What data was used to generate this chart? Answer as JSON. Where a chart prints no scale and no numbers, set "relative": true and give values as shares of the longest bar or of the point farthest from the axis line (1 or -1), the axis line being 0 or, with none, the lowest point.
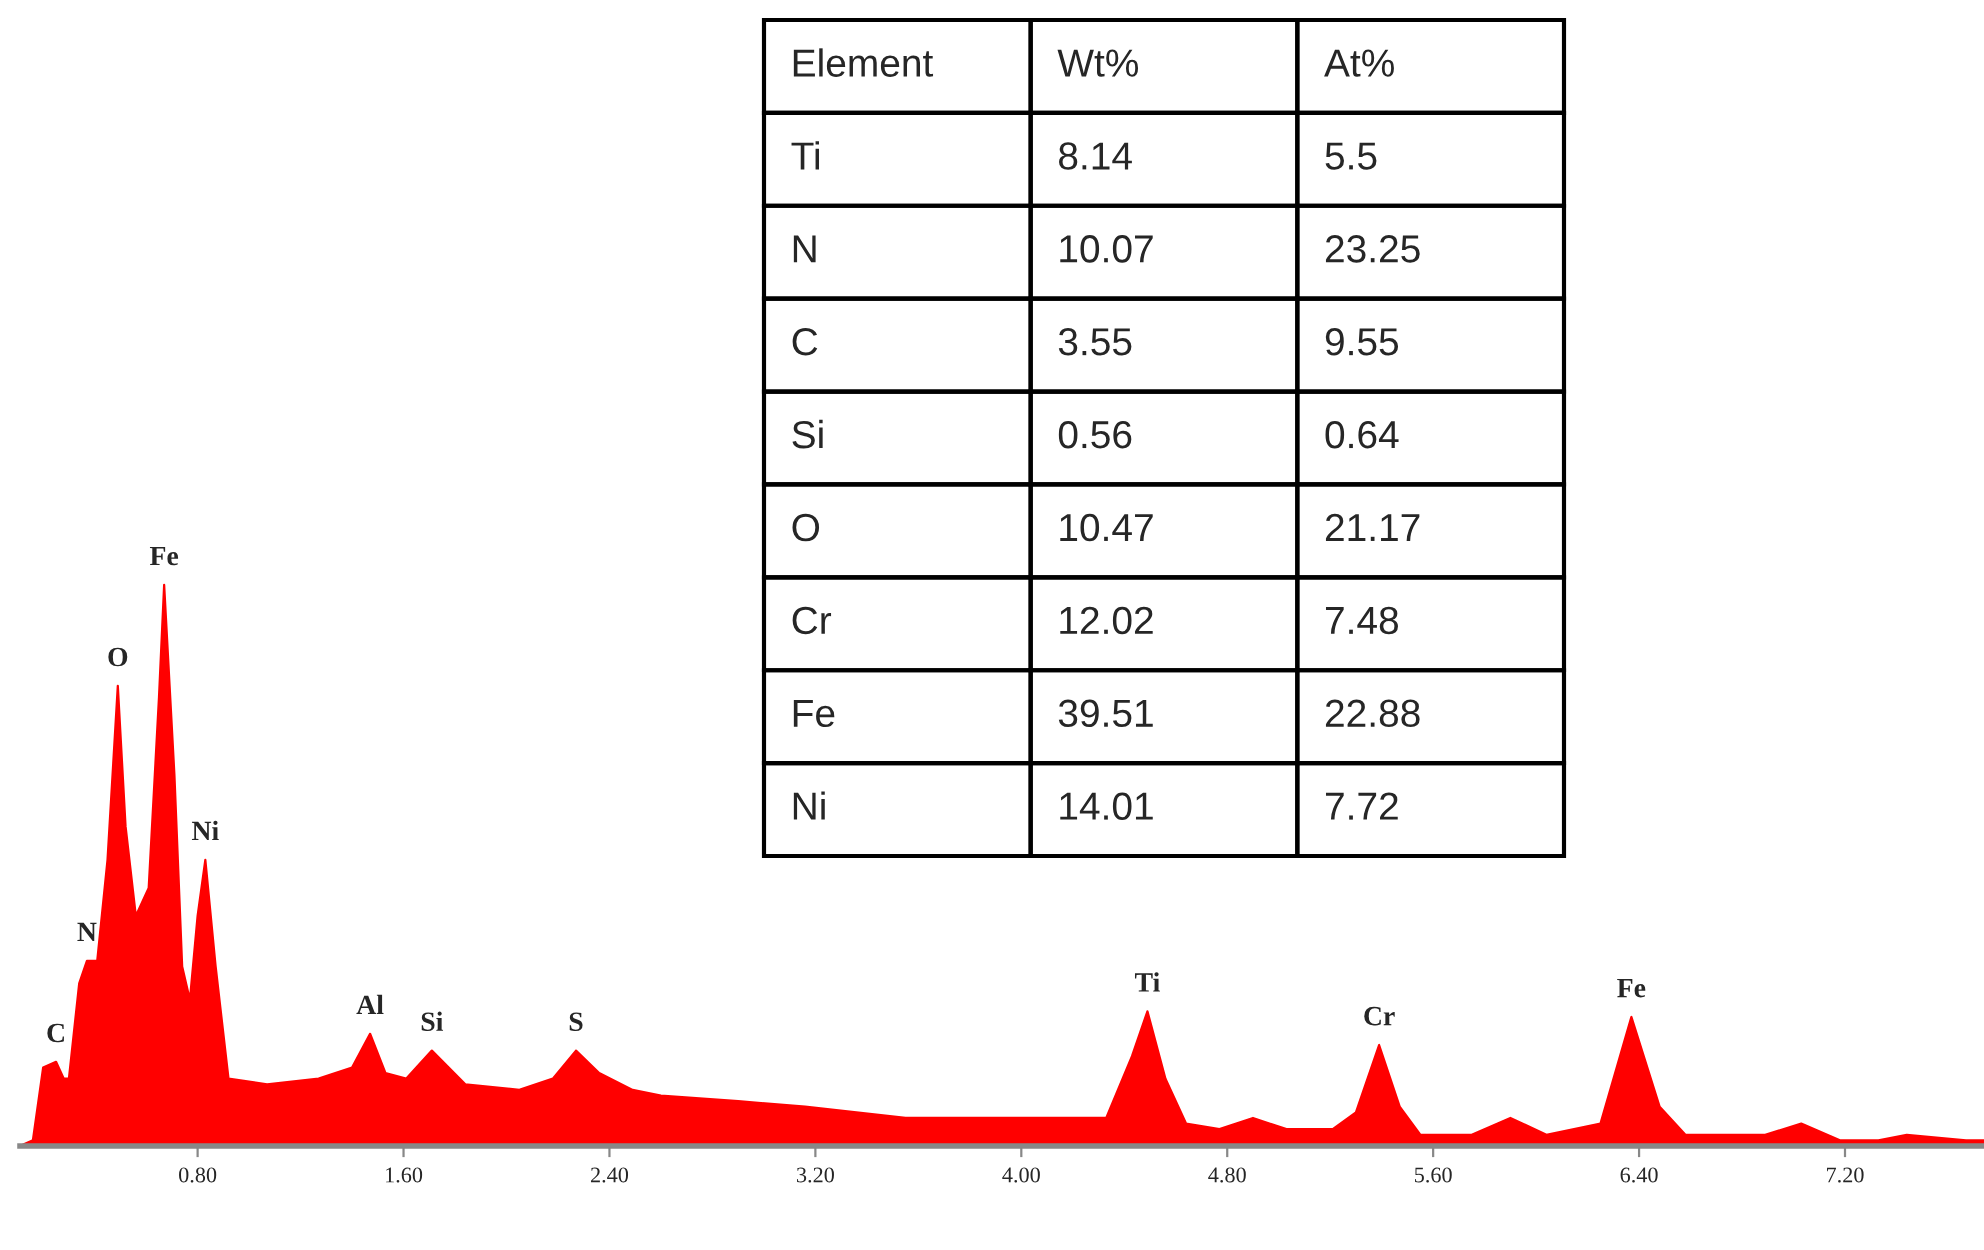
{
  "chart_data": [
    {
      "type": "area",
      "relative": true,
      "color": "#ff0000",
      "x": [
        0.11,
        0.16,
        0.2,
        0.25,
        0.28,
        0.3,
        0.34,
        0.37,
        0.41,
        0.45,
        0.49,
        0.52,
        0.56,
        0.61,
        0.65,
        0.67,
        0.71,
        0.74,
        0.77,
        0.8,
        0.83,
        0.87,
        0.92,
        1.07,
        1.27,
        1.4,
        1.47,
        1.53,
        1.61,
        1.71,
        1.84,
        2.05,
        2.18,
        2.27,
        2.36,
        2.49,
        2.6,
        2.9,
        3.16,
        3.55,
        4.33,
        4.43,
        4.49,
        4.56,
        4.64,
        4.77,
        4.9,
        5.03,
        5.21,
        5.3,
        5.39,
        5.47,
        5.55,
        5.75,
        5.9,
        6.04,
        6.25,
        6.37,
        6.48,
        6.58,
        6.89,
        7.03,
        7.18,
        7.33,
        7.44,
        7.67,
        7.74
      ],
      "values": [
        0,
        0.01,
        0.14,
        0.15,
        0.12,
        0.12,
        0.29,
        0.33,
        0.33,
        0.51,
        0.82,
        0.57,
        0.41,
        0.46,
        0.8,
        1,
        0.66,
        0.32,
        0.26,
        0.41,
        0.51,
        0.32,
        0.12,
        0.11,
        0.12,
        0.14,
        0.2,
        0.13,
        0.12,
        0.17,
        0.11,
        0.1,
        0.12,
        0.17,
        0.13,
        0.1,
        0.09,
        0.08,
        0.07,
        0.05,
        0.05,
        0.16,
        0.24,
        0.12,
        0.04,
        0.03,
        0.05,
        0.03,
        0.03,
        0.06,
        0.18,
        0.07,
        0.02,
        0.02,
        0.05,
        0.02,
        0.04,
        0.23,
        0.07,
        0.02,
        0.02,
        0.04,
        0.01,
        0.01,
        0.02,
        0.01,
        0.01
      ],
      "xlim": [
        0.11,
        7.74
      ],
      "xticks": [
        {
          "value": 0.8,
          "label": "0.80"
        },
        {
          "value": 1.6,
          "label": "1.60"
        },
        {
          "value": 2.4,
          "label": "2.40"
        },
        {
          "value": 3.2,
          "label": "3.20"
        },
        {
          "value": 4.0,
          "label": "4.00"
        },
        {
          "value": 4.8,
          "label": "4.80"
        },
        {
          "value": 5.6,
          "label": "5.60"
        },
        {
          "value": 6.4,
          "label": "6.40"
        },
        {
          "value": 7.2,
          "label": "7.20"
        }
      ],
      "tick_labels": "x",
      "grid": false,
      "legend": false,
      "annotations": [
        {
          "text": "C",
          "x": 0.25,
          "y": 0.15
        },
        {
          "text": "N",
          "x": 0.37,
          "y": 0.33
        },
        {
          "text": "O",
          "x": 0.49,
          "y": 0.82
        },
        {
          "text": "Fe",
          "x": 0.67,
          "y": 1
        },
        {
          "text": "Ni",
          "x": 0.83,
          "y": 0.51
        },
        {
          "text": "Al",
          "x": 1.47,
          "y": 0.2
        },
        {
          "text": "Si",
          "x": 1.71,
          "y": 0.17
        },
        {
          "text": "S",
          "x": 2.27,
          "y": 0.17
        },
        {
          "text": "Ti",
          "x": 4.49,
          "y": 0.24
        },
        {
          "text": "Cr",
          "x": 5.39,
          "y": 0.18
        },
        {
          "text": "Fe",
          "x": 6.37,
          "y": 0.23
        }
      ]
    },
    {
      "type": "other",
      "categories": [
        "Element",
        "Wt%",
        "At%"
      ],
      "y_categories": [
        "Ti",
        "N",
        "C",
        "Si",
        "O",
        "Cr",
        "Fe",
        "Ni"
      ],
      "cell_labels": [
        [
          "8.14",
          "5.5"
        ],
        [
          "10.07",
          "23.25"
        ],
        [
          "3.55",
          "9.55"
        ],
        [
          "0.56",
          "0.64"
        ],
        [
          "10.47",
          "21.17"
        ],
        [
          "12.02",
          "7.48"
        ],
        [
          "39.51",
          "22.88"
        ],
        [
          "14.01",
          "7.72"
        ]
      ]
    }
  ]
}
